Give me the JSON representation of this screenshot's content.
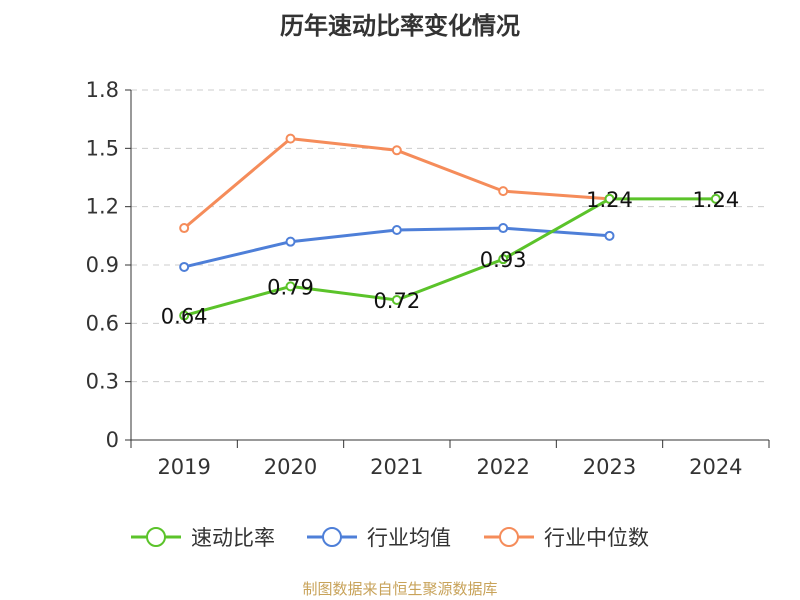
{
  "chart_data": {
    "type": "line",
    "title": "历年速动比率变化情况",
    "categories": [
      "2019",
      "2020",
      "2021",
      "2022",
      "2023",
      "2024"
    ],
    "ylim": [
      0,
      1.8
    ],
    "yticks": [
      "0",
      "0.3",
      "0.6",
      "0.9",
      "1.2",
      "1.5",
      "1.8"
    ],
    "grid": true,
    "legend_position": "bottom",
    "series": [
      {
        "name": "速动比率",
        "color": "#5bc32a",
        "values": [
          0.64,
          0.79,
          0.72,
          0.93,
          1.24,
          1.24
        ],
        "labels": [
          "0.64",
          "0.79",
          "0.72",
          "0.93",
          "1.24",
          "1.24"
        ]
      },
      {
        "name": "行业均值",
        "color": "#4e7fd8",
        "values": [
          0.89,
          1.02,
          1.08,
          1.09,
          1.05,
          null
        ]
      },
      {
        "name": "行业中位数",
        "color": "#f58c5a",
        "values": [
          1.09,
          1.55,
          1.49,
          1.28,
          1.24,
          null
        ]
      }
    ]
  },
  "source": "制图数据来自恒生聚源数据库"
}
